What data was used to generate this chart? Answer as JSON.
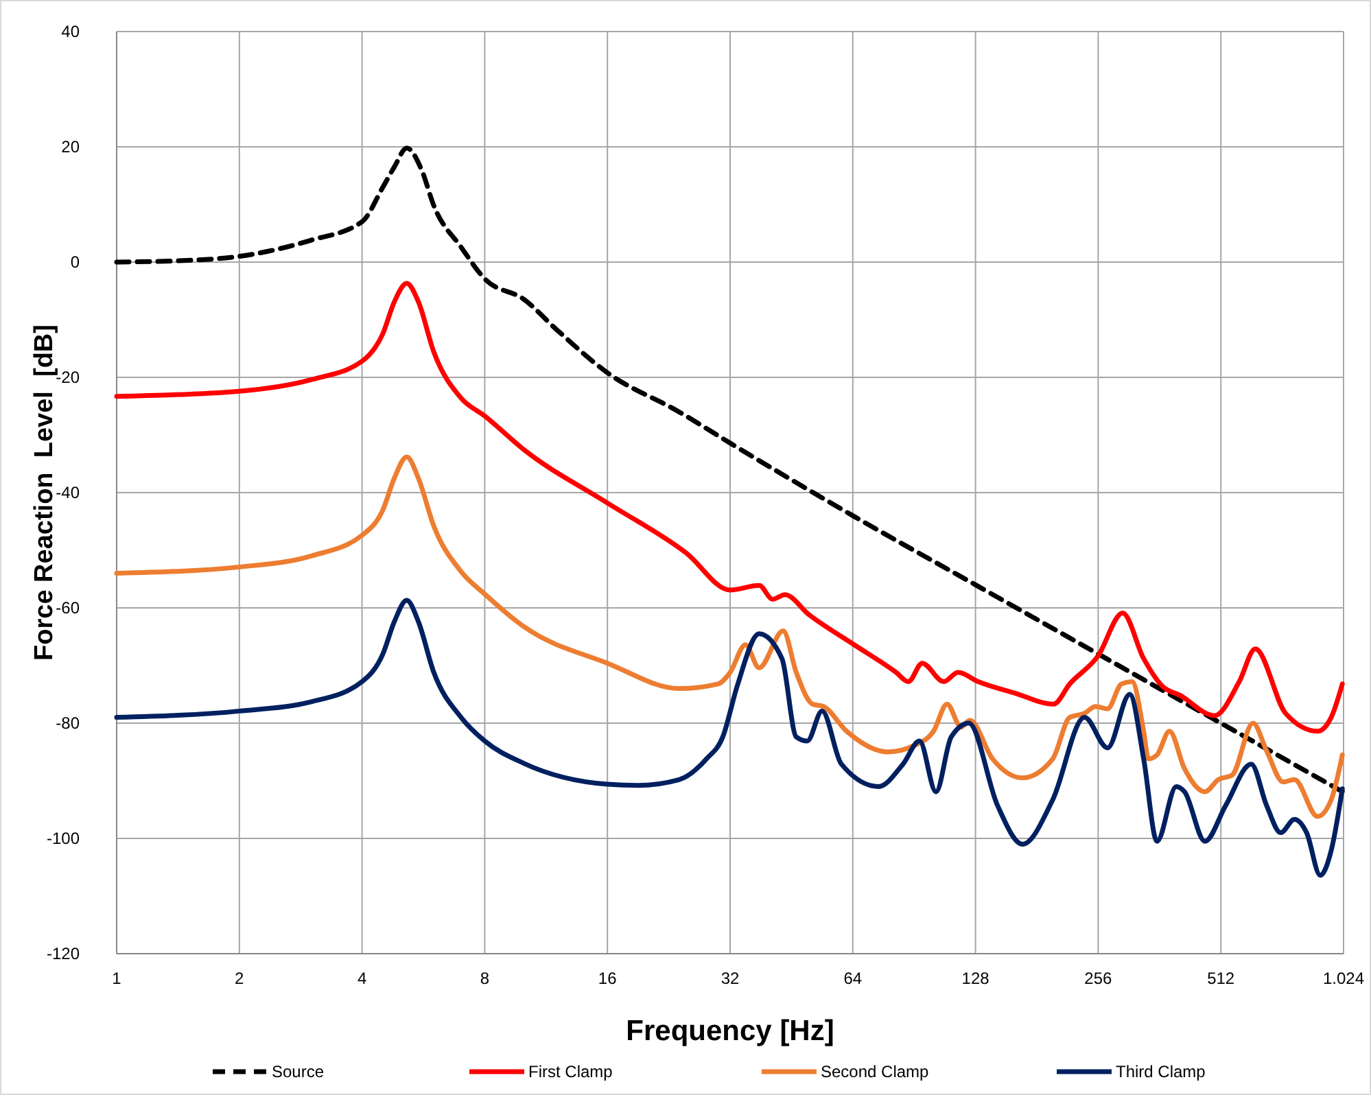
{
  "chart_data": {
    "type": "line",
    "xlabel": "Frequency [Hz]",
    "ylabel": "Force Reaction  Level  [dB]",
    "log": "x",
    "grid": true,
    "legend": "bottom",
    "marker": "none",
    "xlim": [
      1,
      1024
    ],
    "xticks": [
      1,
      2,
      4,
      8,
      16,
      32,
      64,
      128,
      256,
      512,
      {
        "value": 1024,
        "label": "1.024"
      }
    ],
    "ylim": [
      -120,
      40
    ],
    "yticks": [
      -120,
      -100,
      -80,
      -60,
      -40,
      -20,
      0,
      20,
      40
    ],
    "series": [
      {
        "name": "Source",
        "color": "#000000",
        "line_style": "dashed",
        "x": [
          1,
          1.5,
          2,
          3,
          4,
          4.5,
          4.8,
          5.15,
          5.6,
          6,
          7,
          8,
          10,
          12,
          16,
          24,
          32,
          64,
          128,
          256,
          512,
          1024
        ],
        "values": [
          0,
          0.3,
          1,
          3.8,
          7,
          13,
          16.5,
          19.8,
          16,
          9.8,
          2.6,
          -2.9,
          -6.5,
          -11.7,
          -19.2,
          -26,
          -31.4,
          -44,
          -56,
          -68,
          -80,
          -92
        ]
      },
      {
        "name": "First Clamp",
        "color": "#ff0000",
        "line_style": "solid",
        "x": [
          1,
          2,
          3,
          4,
          4.5,
          4.8,
          5.15,
          5.5,
          6,
          7,
          8,
          10,
          16,
          25,
          32,
          37.7,
          40.7,
          43.6,
          50,
          64.5,
          81.8,
          87.6,
          94.7,
          107,
          116,
          130,
          160,
          199,
          218,
          255.5,
          294,
          331,
          368,
          407,
          494,
          568,
          622,
          738,
          884,
          955,
          1017
        ],
        "values": [
          -23.3,
          -22.4,
          -20.4,
          -17.2,
          -12.4,
          -6.9,
          -3.7,
          -6.9,
          -15.6,
          -23.6,
          -26.7,
          -32.6,
          -41.8,
          -50.5,
          -56.9,
          -56.1,
          -58.5,
          -57.7,
          -61.2,
          -66.4,
          -71.2,
          -72.8,
          -69.6,
          -72.8,
          -71.2,
          -72.8,
          -74.8,
          -76.7,
          -73.2,
          -68.4,
          -60.9,
          -68.8,
          -73.6,
          -75.2,
          -78.7,
          -72.8,
          -67.1,
          -78.3,
          -81.4,
          -79,
          -73.2
        ]
      },
      {
        "name": "Second Clamp",
        "color": "#ed7d31",
        "line_style": "solid",
        "x": [
          1,
          2,
          3,
          4,
          4.5,
          4.8,
          5.15,
          5.5,
          6,
          7,
          8,
          10,
          16,
          24,
          29.9,
          32,
          34.9,
          37.7,
          43.2,
          46.5,
          51,
          54.2,
          61.8,
          78,
          91,
          101,
          109,
          118,
          124,
          141,
          167,
          198,
          218,
          237,
          252,
          270,
          292,
          310,
          331,
          340,
          357,
          383,
          417,
          468,
          505,
          546,
          614,
          663,
          728,
          776,
          884,
          955,
          1017
        ],
        "values": [
          -54,
          -52.9,
          -51,
          -47.4,
          -43,
          -37.5,
          -33.8,
          -37.5,
          -45.8,
          -53.7,
          -57.6,
          -63.3,
          -69.6,
          -74,
          -73.2,
          -71.2,
          -66.4,
          -70.4,
          -64,
          -71.2,
          -76.7,
          -77.1,
          -81.4,
          -85,
          -83.8,
          -81.4,
          -76.7,
          -80.7,
          -79.5,
          -86.2,
          -89.5,
          -86.2,
          -79,
          -78.3,
          -77.1,
          -77.5,
          -73.2,
          -72.8,
          -81.4,
          -86.2,
          -85.5,
          -81.4,
          -87.9,
          -91.9,
          -89.8,
          -89,
          -80,
          -84.8,
          -90.2,
          -89.8,
          -96.2,
          -93.3,
          -85.5
        ]
      },
      {
        "name": "Third Clamp",
        "color": "#002060",
        "line_style": "solid",
        "x": [
          1,
          2,
          3,
          4,
          4.5,
          4.8,
          5.15,
          5.5,
          6,
          7,
          8,
          10,
          16,
          19,
          24,
          28,
          30.7,
          33.3,
          37.7,
          42.9,
          46.5,
          49.5,
          53.8,
          60,
          74,
          85,
          93.3,
          102.4,
          111.6,
          123.3,
          145,
          167,
          198,
          237,
          270,
          306,
          331,
          357,
          398,
          417,
          468,
          526,
          608,
          663,
          718,
          776,
          831,
          898,
          955,
          1017
        ],
        "values": [
          -79,
          -77.9,
          -76.3,
          -72.8,
          -68,
          -62.4,
          -58.7,
          -62.4,
          -71.2,
          -79,
          -83.1,
          -87,
          -90.6,
          -90.8,
          -89.8,
          -86.2,
          -82.4,
          -73.6,
          -64.5,
          -68.8,
          -82.4,
          -83.1,
          -77.9,
          -87.1,
          -91,
          -87.1,
          -83.1,
          -91.9,
          -82.4,
          -80,
          -94.3,
          -101,
          -93.3,
          -79,
          -84.3,
          -75,
          -86.2,
          -100.5,
          -91,
          -91.9,
          -100.5,
          -94.3,
          -87.1,
          -94.3,
          -99,
          -96.7,
          -99,
          -106.4,
          -102.1,
          -91.4
        ]
      }
    ]
  }
}
